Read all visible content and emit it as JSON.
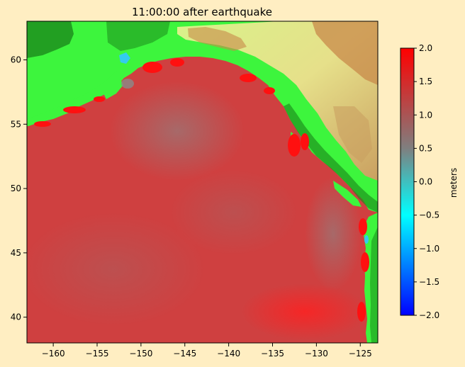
{
  "title": "11:00:00 after earthquake",
  "axes": {
    "x_range": [
      -163,
      -123
    ],
    "y_range": [
      38,
      63
    ],
    "x_ticks": [
      -160,
      -155,
      -150,
      -145,
      -140,
      -135,
      -130,
      -125
    ],
    "y_ticks": [
      40,
      45,
      50,
      55,
      60
    ],
    "x_tick_labels": [
      "−160",
      "−155",
      "−150",
      "−145",
      "−140",
      "−135",
      "−130",
      "−125"
    ],
    "y_tick_labels": [
      "40",
      "45",
      "50",
      "55",
      "60"
    ]
  },
  "colorbar": {
    "label": "meters",
    "range": [
      -2.0,
      2.0
    ],
    "ticks": [
      2.0,
      1.5,
      1.0,
      0.5,
      0.0,
      -0.5,
      -1.0,
      -1.5,
      -2.0
    ],
    "tick_labels": [
      "2.0",
      "1.5",
      "1.0",
      "0.5",
      "0.0",
      "−0.5",
      "−1.0",
      "−1.5",
      "−2.0"
    ],
    "colors": [
      "#0000ff",
      "#00aaff",
      "#00ffff",
      "#7f7f7f",
      "#ff0000"
    ]
  },
  "colors": {
    "ocean": "#cf4040",
    "ocean_low": "#a86a6a",
    "coast_high": "#ff1010",
    "land_low": "#3df53d",
    "land_mid": "#d9f28a",
    "land_high": "#c8894a",
    "forest": "#1b8a1b",
    "background": "#ffeec2"
  }
}
